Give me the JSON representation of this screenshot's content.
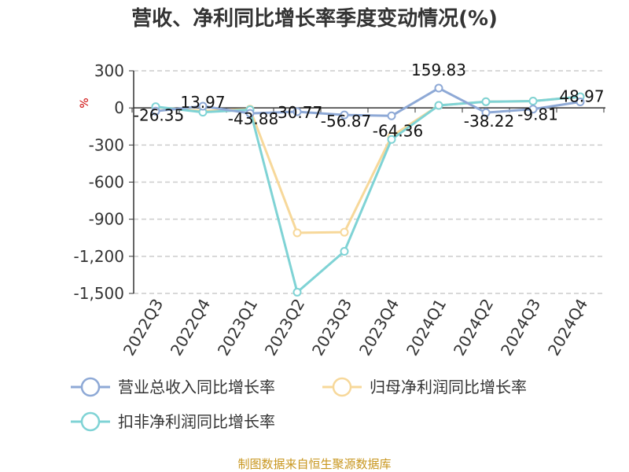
{
  "colors": {
    "revenue": "#8ea9d6",
    "parent_profit": "#f7d89a",
    "deducted_profit": "#7fd3d5",
    "grid": "#cccccc",
    "axis": "#333333",
    "source": "#c8961e"
  },
  "source_text": "制图数据来自恒生聚源数据库",
  "chart_data": {
    "type": "line",
    "title": "营收、净利同比增长率季度变动情况(%)",
    "ylabel": "%",
    "xlabel": "",
    "ylim": [
      -1500,
      300
    ],
    "yticks": [
      300,
      0,
      -300,
      -600,
      -900,
      -1200,
      -1500
    ],
    "ytick_labels": [
      "300",
      "0",
      "-300",
      "-600",
      "-900",
      "-1,200",
      "-1,500"
    ],
    "grid": true,
    "legend_position": "bottom",
    "categories": [
      "2022Q3",
      "2022Q4",
      "2023Q1",
      "2023Q2",
      "2023Q3",
      "2023Q4",
      "2024Q1",
      "2024Q2",
      "2024Q3",
      "2024Q4"
    ],
    "series": [
      {
        "name": "营业总收入同比增长率",
        "color_key": "revenue",
        "values": [
          -26.35,
          13.97,
          -43.88,
          -30.77,
          -56.87,
          -64.36,
          159.83,
          -38.22,
          -9.81,
          48.97
        ],
        "labels": [
          "-26.35",
          "13.97",
          "-43.88",
          "-30.77",
          "-56.87",
          "-64.36",
          "159.83",
          "-38.22",
          "-9.81",
          "48.97"
        ]
      },
      {
        "name": "归母净利润同比增长率",
        "color_key": "parent_profit",
        "values": [
          5,
          -25,
          -10,
          -1010,
          -1005,
          -230,
          20,
          50,
          55,
          90
        ]
      },
      {
        "name": "扣非净利润同比增长率",
        "color_key": "deducted_profit",
        "values": [
          10,
          -35,
          -15,
          -1490,
          -1160,
          -255,
          20,
          50,
          55,
          90
        ]
      }
    ]
  }
}
